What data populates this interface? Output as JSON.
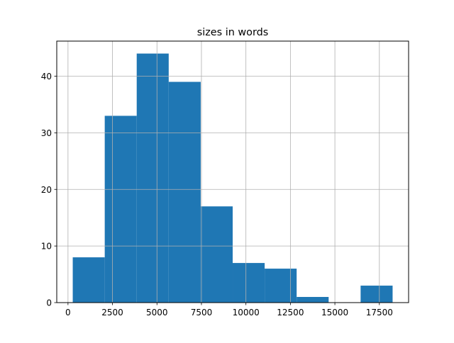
{
  "chart_data": {
    "type": "bar",
    "subtype": "histogram",
    "title": "sizes in words",
    "xlabel": "",
    "ylabel": "",
    "bin_edges": [
      267,
      2065,
      3862,
      5660,
      7458,
      9256,
      11053,
      12851,
      14649,
      16446,
      18244
    ],
    "values": [
      8,
      33,
      44,
      39,
      17,
      7,
      6,
      1,
      0,
      3
    ],
    "xlim": [
      -632,
      19143
    ],
    "ylim": [
      0,
      46.2
    ],
    "xticks": [
      0,
      2500,
      5000,
      7500,
      10000,
      12500,
      15000,
      17500
    ],
    "yticks": [
      0,
      10,
      20,
      30,
      40
    ],
    "grid": true,
    "bar_color": "#1f77b4",
    "grid_color": "#b0b0b0"
  }
}
